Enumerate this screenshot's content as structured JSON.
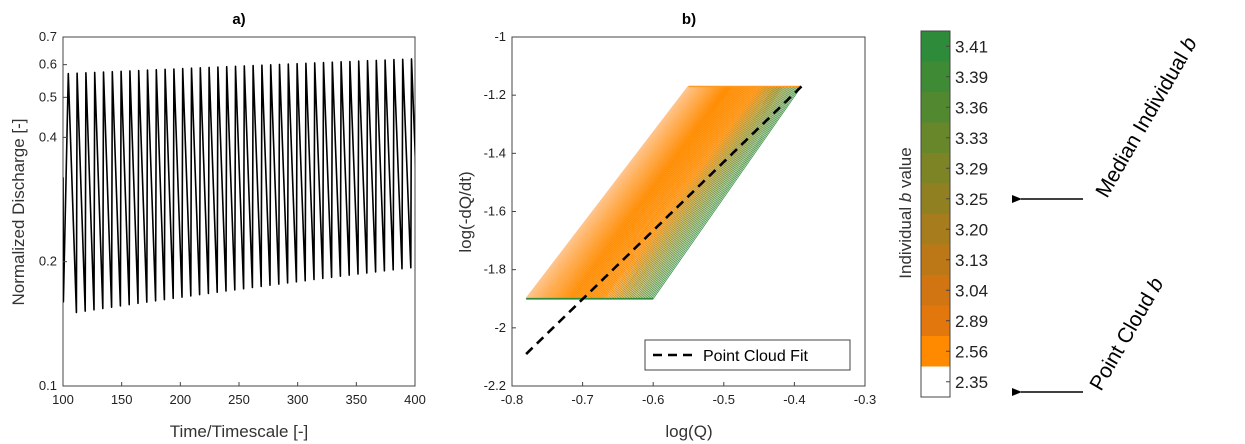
{
  "chart_data": [
    {
      "type": "line",
      "panel": "a)",
      "title": "a)",
      "xlabel": "Time/Timescale [-]",
      "ylabel": "Normalized Discharge [-]",
      "xlim": [
        100,
        400
      ],
      "ylim": [
        0.1,
        0.7
      ],
      "yscale": "log",
      "xticks": [
        "100",
        "150",
        "200",
        "250",
        "300",
        "350",
        "400"
      ],
      "yticks": [
        "0.1",
        "0.2",
        "0.4",
        "0.5",
        "0.6",
        "0.7"
      ],
      "grid": false,
      "series": [
        {
          "color": "#000000",
          "period": 7.5,
          "first_peak_x": 104.5,
          "peak_start": 0.57,
          "peak_end": 0.62,
          "trough_start": 0.15,
          "trough_end": 0.195
        }
      ]
    },
    {
      "type": "line",
      "panel": "b)",
      "title": "b)",
      "xlabel": "log(Q)",
      "ylabel": "log(-dQ/dt)",
      "xlim": [
        -0.8,
        -0.3
      ],
      "ylim": [
        -2.2,
        -1.0
      ],
      "xticks": [
        "-0.8",
        "-0.7",
        "-0.6",
        "-0.5",
        "-0.4",
        "-0.3"
      ],
      "yticks": [
        "-1",
        "-1.2",
        "-1.4",
        "-1.6",
        "-1.8",
        "-2",
        "-2.2"
      ],
      "grid": false,
      "legend": {
        "position": "bottom-right",
        "entries": [
          "Point Cloud Fit"
        ]
      },
      "series": [
        {
          "name": "Point Cloud Fit",
          "style": "dashed",
          "color": "#000000",
          "x": [
            -0.78,
            -0.39
          ],
          "y": [
            -2.09,
            -1.17
          ]
        },
        {
          "style": "filled-parallelogram",
          "colormap": "individual b value",
          "corners": {
            "bottom_left": [
              -0.78,
              -1.9
            ],
            "bottom_right": [
              -0.6,
              -1.9
            ],
            "top_right": [
              -0.39,
              -1.17
            ],
            "top_left": [
              -0.55,
              -1.17
            ]
          }
        }
      ]
    }
  ],
  "colorbar": {
    "label_parts": [
      "Individual ",
      "b",
      "  value"
    ],
    "ticks": [
      "3.41",
      "3.39",
      "3.36",
      "3.33",
      "3.29",
      "3.25",
      "3.20",
      "3.13",
      "3.04",
      "2.89",
      "2.56",
      "2.35"
    ],
    "colors": [
      "#2e8b3a",
      "#3f8a35",
      "#528930",
      "#68872b",
      "#7d8426",
      "#918021",
      "#a67c1c",
      "#bc7817",
      "#d07512",
      "#e2770d",
      "#ff8a00",
      "#ffffff"
    ]
  },
  "annotations": [
    {
      "label": "Median Individual ",
      "symbol": "b",
      "points_to": "3.25"
    },
    {
      "label": "Point Cloud ",
      "symbol": "b",
      "points_to": "2.35"
    }
  ]
}
